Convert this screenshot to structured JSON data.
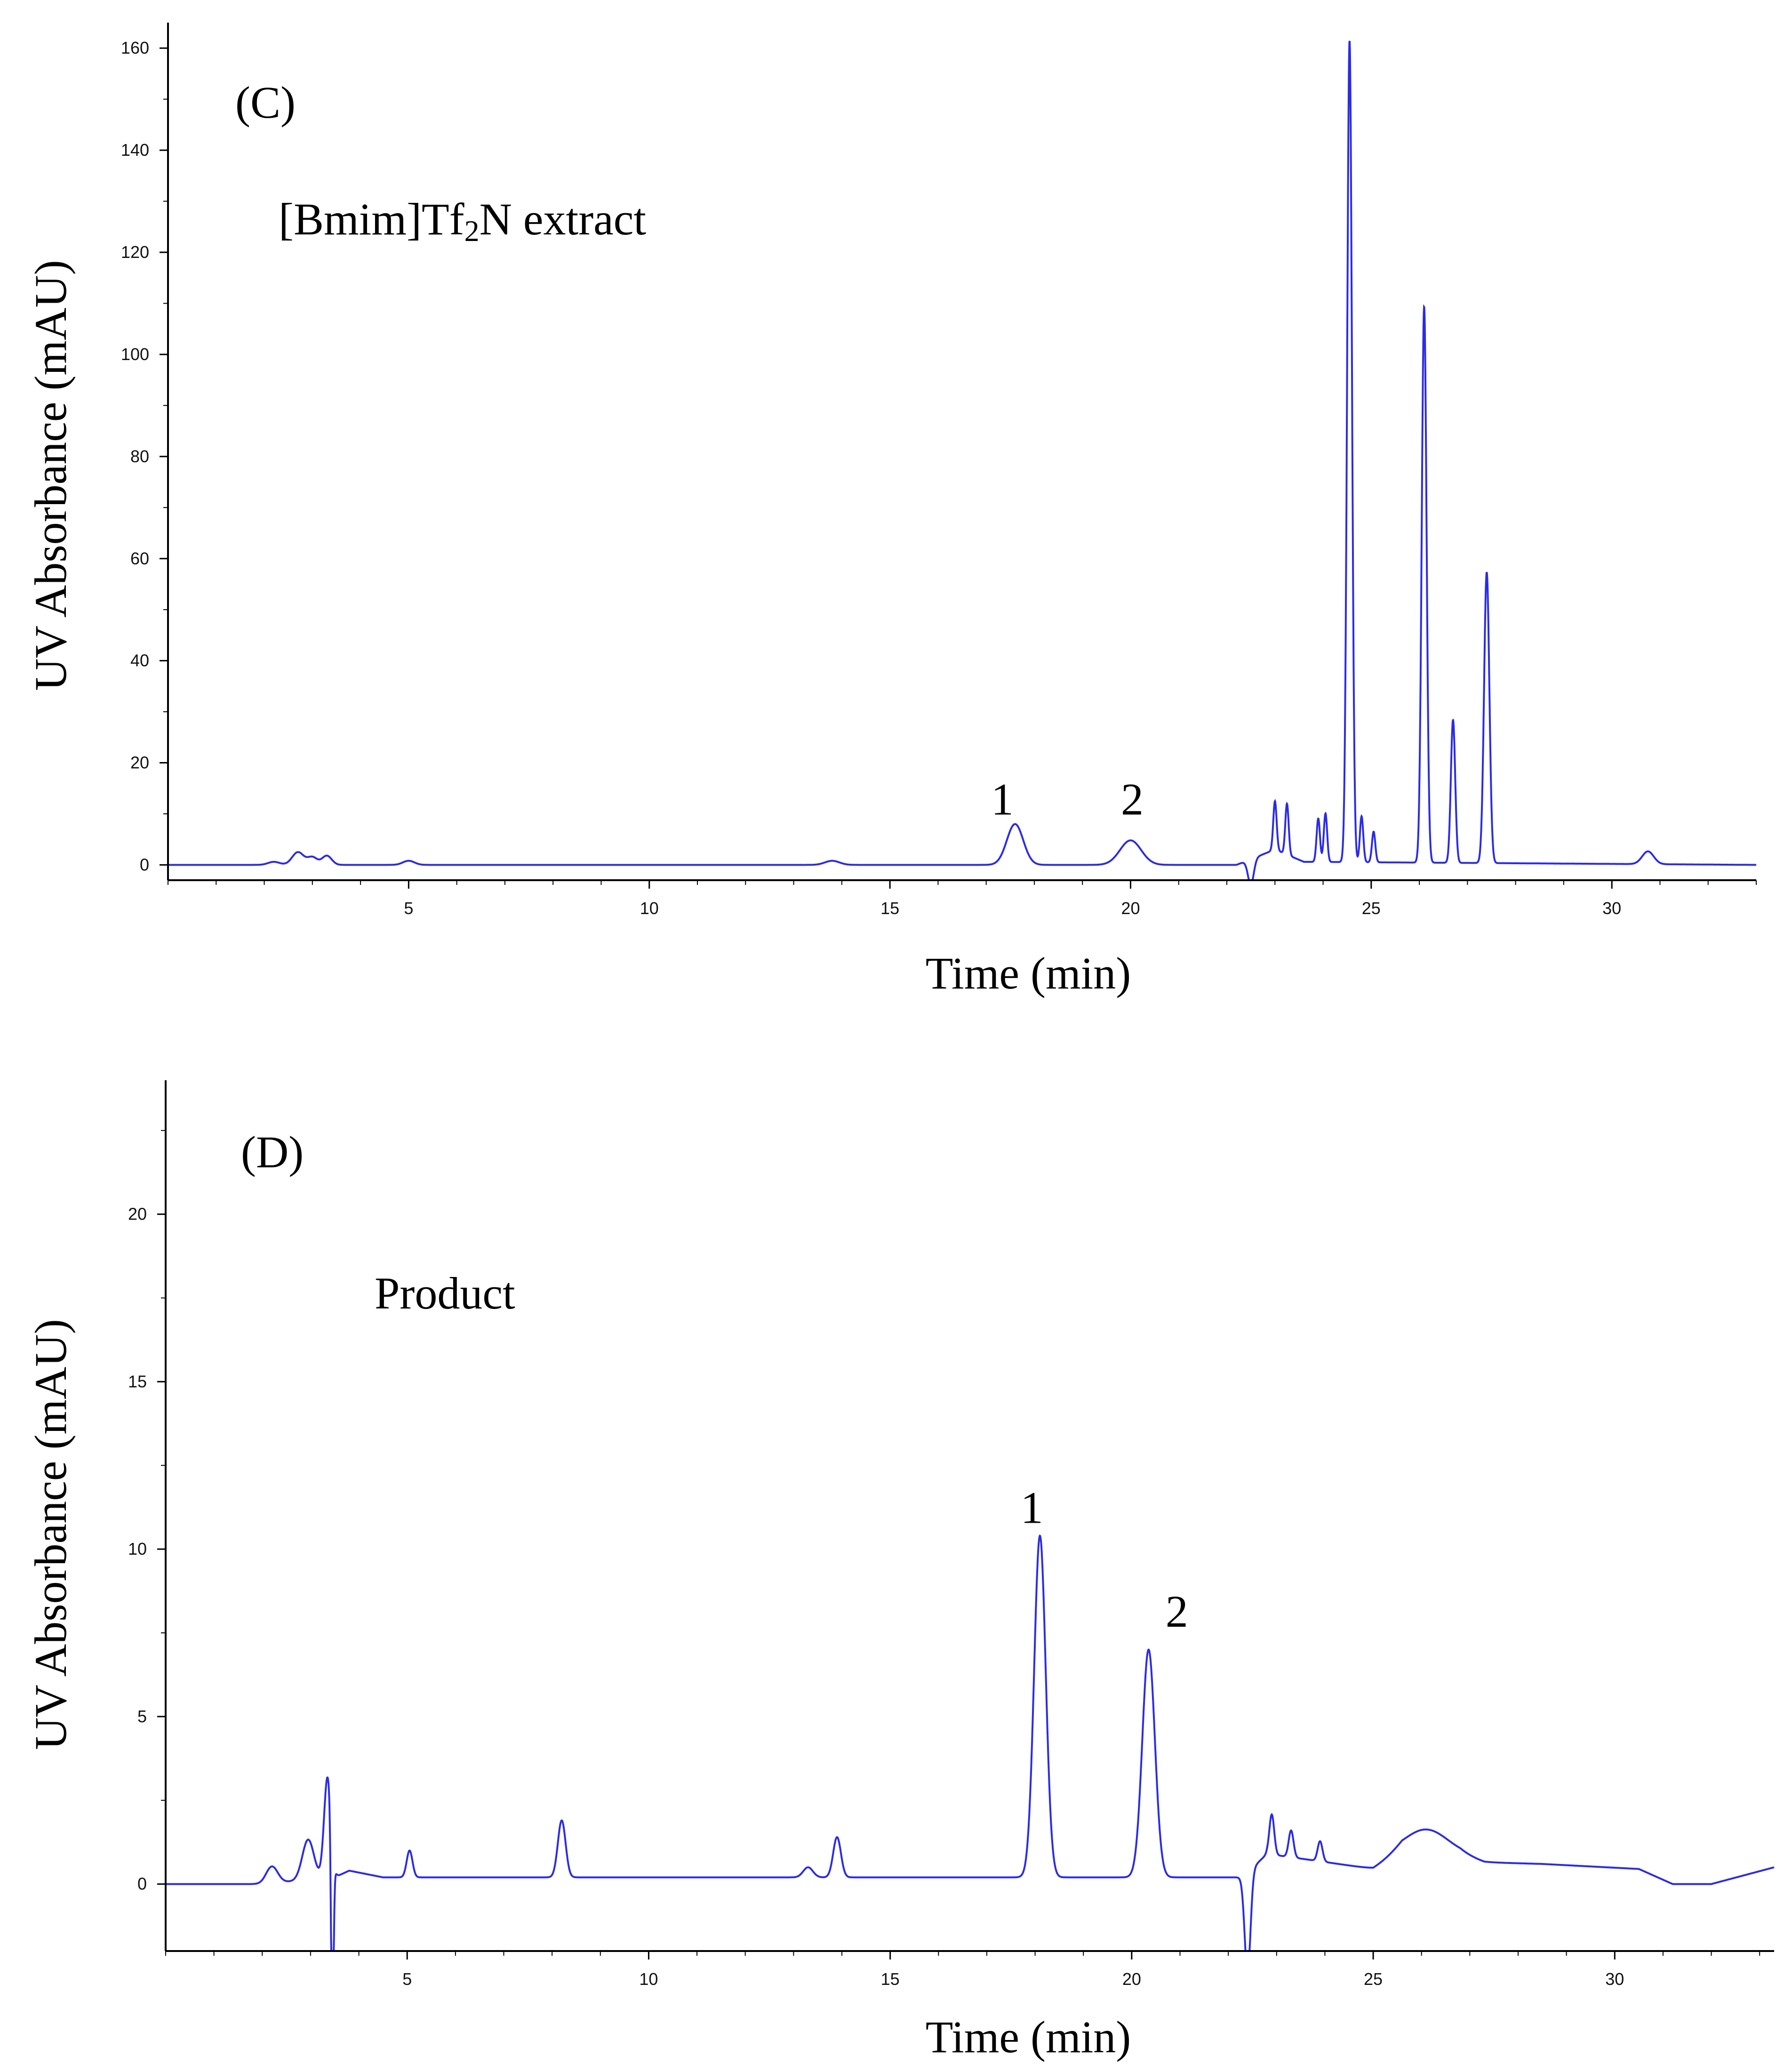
{
  "chart_data": [
    {
      "type": "line",
      "panel_label": "(C)",
      "annotation": {
        "prefix": "[Bmim]Tf",
        "subscript": "2",
        "suffix": "N extract"
      },
      "xlabel": "Time (min)",
      "ylabel": "UV Absorbance (mAU)",
      "xlim": [
        0,
        33
      ],
      "ylim": [
        -3,
        165
      ],
      "xticks": [
        5,
        10,
        15,
        20,
        25,
        30
      ],
      "yticks": [
        0,
        20,
        40,
        60,
        80,
        100,
        120,
        140,
        160
      ],
      "grid": false,
      "series": [
        {
          "color": "#2b2be8",
          "baseline": [
            [
              0,
              0
            ],
            [
              2,
              0
            ],
            [
              22.2,
              0
            ],
            [
              23,
              3
            ],
            [
              23.6,
              0.6
            ],
            [
              33,
              0
            ]
          ],
          "peaks": [
            [
              2.2,
              0.6,
              0.12
            ],
            [
              2.7,
              2.5,
              0.12
            ],
            [
              3.0,
              1.5,
              0.1
            ],
            [
              3.3,
              1.8,
              0.1
            ],
            [
              5.0,
              0.8,
              0.12
            ],
            [
              13.8,
              0.8,
              0.15
            ],
            [
              17.6,
              8,
              0.17
            ],
            [
              20.0,
              4.8,
              0.22
            ],
            [
              23.0,
              9.5,
              0.035
            ],
            [
              23.25,
              10,
              0.035
            ],
            [
              23.9,
              8.5,
              0.035
            ],
            [
              24.05,
              9.5,
              0.035
            ],
            [
              24.55,
              161,
              0.05
            ],
            [
              24.8,
              9,
              0.035
            ],
            [
              25.05,
              6,
              0.035
            ],
            [
              26.1,
              109,
              0.05
            ],
            [
              26.7,
              28,
              0.045
            ],
            [
              27.4,
              57,
              0.055
            ],
            [
              30.75,
              2.5,
              0.12
            ]
          ],
          "dips": [
            [
              22.5,
              -5,
              0.06
            ]
          ]
        }
      ],
      "peak_labels": [
        {
          "text": "1",
          "x": 17.1,
          "y": 8
        },
        {
          "text": "2",
          "x": 19.8,
          "y": 8
        }
      ]
    },
    {
      "type": "line",
      "panel_label": "(D)",
      "annotation": {
        "prefix": "Product",
        "subscript": "",
        "suffix": ""
      },
      "xlabel": "Time (min)",
      "ylabel": "UV Absorbance (mAU)",
      "xlim": [
        0,
        33.3
      ],
      "ylim": [
        -2,
        24
      ],
      "xticks": [
        5,
        10,
        15,
        20,
        25,
        30
      ],
      "yticks": [
        0,
        5,
        10,
        15,
        20
      ],
      "grid": false,
      "series": [
        {
          "color": "#2b2be8",
          "baseline": [
            [
              0,
              0
            ],
            [
              2,
              0
            ],
            [
              3.5,
              0.2
            ],
            [
              3.8,
              0.4
            ],
            [
              4.5,
              0.2
            ],
            [
              17,
              0.2
            ],
            [
              22.3,
              0.2
            ],
            [
              22.8,
              0.9
            ],
            [
              23.8,
              0.7
            ],
            [
              25,
              0.45
            ],
            [
              25.6,
              0.9
            ],
            [
              26.8,
              0.85
            ],
            [
              27.3,
              0.65
            ],
            [
              28.5,
              0.6
            ],
            [
              30.5,
              0.45
            ],
            [
              31.2,
              0
            ],
            [
              32,
              0
            ],
            [
              33.3,
              0.5
            ]
          ],
          "peaks": [
            [
              2.2,
              0.5,
              0.12
            ],
            [
              2.95,
              1.2,
              0.12
            ],
            [
              3.35,
              3,
              0.07
            ],
            [
              5.05,
              0.8,
              0.06
            ],
            [
              8.2,
              1.7,
              0.08
            ],
            [
              13.3,
              0.3,
              0.1
            ],
            [
              13.9,
              1.2,
              0.08
            ],
            [
              18.1,
              10.2,
              0.12
            ],
            [
              20.35,
              6.8,
              0.13
            ],
            [
              22.9,
              1.2,
              0.05
            ],
            [
              23.3,
              0.8,
              0.05
            ],
            [
              23.9,
              0.6,
              0.05
            ],
            [
              26.1,
              0.75,
              0.45
            ]
          ],
          "dips": [
            [
              3.45,
              -6,
              0.025
            ],
            [
              22.4,
              -3,
              0.06
            ]
          ]
        }
      ],
      "peak_labels": [
        {
          "text": "1",
          "x": 17.7,
          "y": 10.5
        },
        {
          "text": "2",
          "x": 20.7,
          "y": 7.4
        }
      ]
    }
  ]
}
